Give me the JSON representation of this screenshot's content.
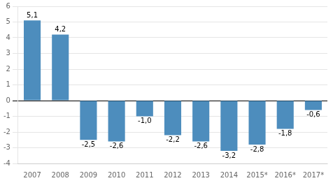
{
  "chart_data": {
    "type": "bar",
    "categories": [
      "2007",
      "2008",
      "2009",
      "2010",
      "2011",
      "2012",
      "2013",
      "2014",
      "2015*",
      "2016*",
      "2017*"
    ],
    "values": [
      5.1,
      4.2,
      -2.5,
      -2.6,
      -1.0,
      -2.2,
      -2.6,
      -3.2,
      -2.8,
      -1.8,
      -0.6
    ],
    "value_labels": [
      "5,1",
      "4,2",
      "-2,5",
      "-2,6",
      "-1,0",
      "-2,2",
      "-2,6",
      "-3,2",
      "-2,8",
      "-1,8",
      "-0,6"
    ],
    "data_labels": true,
    "color": "#4D8DBD",
    "ylim": [
      -4,
      6
    ],
    "yticks": [
      -4,
      -3,
      -2,
      -1,
      0,
      1,
      2,
      3,
      4,
      5,
      6
    ],
    "grid": true
  }
}
